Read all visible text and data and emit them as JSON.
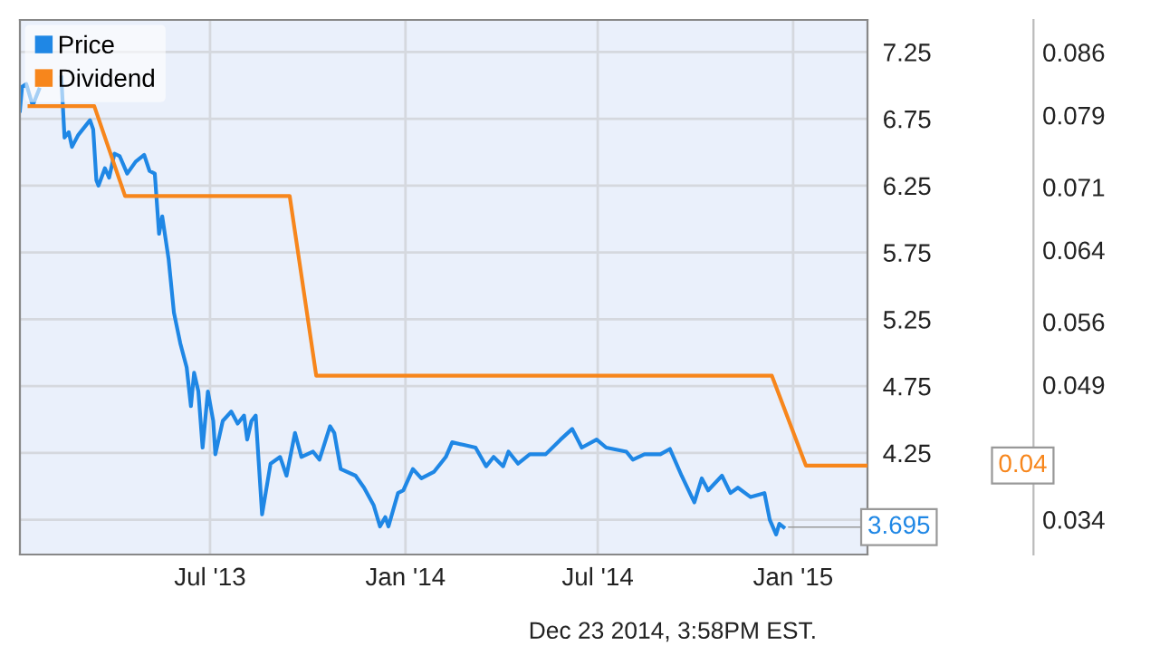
{
  "chart_data": {
    "type": "line",
    "xlim": [
      "2013-01-03",
      "2015-03-12"
    ],
    "xticks": [
      {
        "value": "2013-07-01",
        "label": "Jul '13"
      },
      {
        "value": "2014-01-01",
        "label": "Jan '14"
      },
      {
        "value": "2014-07-01",
        "label": "Jul '14"
      },
      {
        "value": "2015-01-01",
        "label": "Jan '15"
      }
    ],
    "ylim": [
      3.49,
      7.49
    ],
    "yticks": [
      {
        "value": 3.75,
        "label": null
      },
      4.25,
      4.75,
      5.25,
      5.75,
      6.25,
      6.75,
      7.25
    ],
    "y2lim": [
      0.0301,
      0.0896
    ],
    "y2ticks": [
      0.034,
      0.049,
      0.056,
      0.064,
      0.071,
      0.079,
      0.086
    ],
    "grid": true,
    "legend": "top left",
    "marker": "none",
    "line_style": "solid",
    "series": [
      {
        "name": "Price",
        "color": "#1f87e5",
        "x": [
          "2013-01-03",
          "2013-01-05",
          "2013-01-09",
          "2013-01-15",
          "2013-01-21",
          "2013-01-29",
          "2013-02-07",
          "2013-02-11",
          "2013-02-14",
          "2013-02-18",
          "2013-02-21",
          "2013-02-27",
          "2013-03-10",
          "2013-03-13",
          "2013-03-16",
          "2013-03-18",
          "2013-03-24",
          "2013-03-28",
          "2013-04-02",
          "2013-04-07",
          "2013-04-14",
          "2013-04-22",
          "2013-04-30",
          "2013-05-05",
          "2013-05-10",
          "2013-05-14",
          "2013-05-17",
          "2013-05-23",
          "2013-05-28",
          "2013-06-03",
          "2013-06-09",
          "2013-06-13",
          "2013-06-16",
          "2013-06-20",
          "2013-06-24",
          "2013-06-29",
          "2013-07-04",
          "2013-07-06",
          "2013-07-13",
          "2013-07-21",
          "2013-07-27",
          "2013-08-02",
          "2013-08-05",
          "2013-08-09",
          "2013-08-13",
          "2013-08-19",
          "2013-08-27",
          "2013-09-05",
          "2013-09-11",
          "2013-09-19",
          "2013-09-25",
          "2013-10-06",
          "2013-10-12",
          "2013-10-22",
          "2013-10-26",
          "2013-11-01",
          "2013-11-15",
          "2013-11-23",
          "2013-12-02",
          "2013-12-08",
          "2013-12-13",
          "2013-12-16",
          "2013-12-25",
          "2013-12-30",
          "2014-01-08",
          "2014-01-16",
          "2014-01-28",
          "2014-02-08",
          "2014-02-14",
          "2014-02-25",
          "2014-03-08",
          "2014-03-18",
          "2014-03-25",
          "2014-04-03",
          "2014-04-08",
          "2014-04-17",
          "2014-04-28",
          "2014-05-13",
          "2014-05-27",
          "2014-06-07",
          "2014-06-16",
          "2014-06-30",
          "2014-07-09",
          "2014-07-28",
          "2014-08-03",
          "2014-08-14",
          "2014-08-29",
          "2014-09-07",
          "2014-09-18",
          "2014-09-30",
          "2014-10-07",
          "2014-10-13",
          "2014-10-26",
          "2014-11-03",
          "2014-11-10",
          "2014-11-22",
          "2014-12-05",
          "2014-12-10",
          "2014-12-16",
          "2014-12-19",
          "2014-12-23"
        ],
        "values": [
          6.81,
          6.99,
          7.01,
          6.85,
          6.97,
          null,
          null,
          7.06,
          6.61,
          6.65,
          6.54,
          6.63,
          6.74,
          6.67,
          6.29,
          6.25,
          6.38,
          6.31,
          6.49,
          6.47,
          6.34,
          6.43,
          6.48,
          6.36,
          6.34,
          5.89,
          6.02,
          5.7,
          5.3,
          5.07,
          4.89,
          4.6,
          4.85,
          4.71,
          4.29,
          4.71,
          4.49,
          4.24,
          4.49,
          4.56,
          4.47,
          4.53,
          4.35,
          4.49,
          4.53,
          3.79,
          4.17,
          4.22,
          4.08,
          4.4,
          4.22,
          4.26,
          4.2,
          4.45,
          4.4,
          4.13,
          4.08,
          3.99,
          3.86,
          3.7,
          3.77,
          3.7,
          3.95,
          3.97,
          4.13,
          4.06,
          4.11,
          4.22,
          4.33,
          4.31,
          4.29,
          4.15,
          4.22,
          4.15,
          4.26,
          4.17,
          4.24,
          4.24,
          4.35,
          4.43,
          4.29,
          4.35,
          4.29,
          4.26,
          4.2,
          4.24,
          4.24,
          4.28,
          4.08,
          3.88,
          4.06,
          3.97,
          4.08,
          3.95,
          3.99,
          3.92,
          3.95,
          3.75,
          3.64,
          3.72,
          3.695
        ]
      },
      {
        "name": "Dividend",
        "color": "#f7861c",
        "axis": "y2",
        "x": [
          "2013-01-12",
          "2013-03-14",
          "2013-04-12",
          "2013-09-14",
          "2013-10-09",
          "2014-12-12",
          "2015-01-13",
          "2015-03-12"
        ],
        "values": [
          0.08,
          0.08,
          0.07,
          0.07,
          0.05,
          0.05,
          0.04,
          0.04
        ]
      }
    ],
    "annotations": [
      {
        "text": "3.695",
        "x": "2014-12-23",
        "y": 3.695
      },
      "0.04",
      "Dec 23 2014, 3:58PM EST."
    ]
  }
}
